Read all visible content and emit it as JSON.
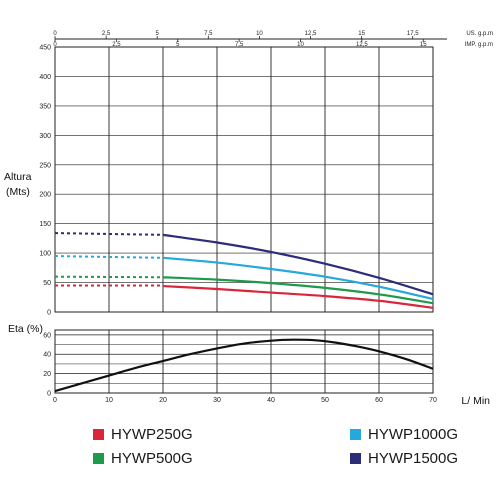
{
  "chart_data": [
    {
      "type": "line",
      "ylabel": [
        "Altura",
        "(Mts)"
      ],
      "ylim": [
        0,
        450
      ],
      "yticks": [
        0,
        50,
        100,
        150,
        200,
        250,
        300,
        350,
        400,
        450
      ],
      "xlim": [
        0,
        70
      ],
      "grid": true,
      "top_axes": [
        {
          "label": "US. g.p.m",
          "ticks": [
            "0",
            "2,5",
            "5",
            "7,5",
            "10",
            "12,5",
            "15",
            "17,5"
          ],
          "values": [
            0,
            2.5,
            5,
            7.5,
            10,
            12.5,
            15,
            17.5
          ],
          "lpm_per_unit": 3.7854
        },
        {
          "label": "IMP. g.p.m",
          "ticks": [
            "0",
            "2,5",
            "5",
            "7,5",
            "10",
            "12,5",
            "15"
          ],
          "values": [
            0,
            2.5,
            5,
            7.5,
            10,
            12.5,
            15
          ],
          "lpm_per_unit": 4.546
        }
      ],
      "series": [
        {
          "name": "HYWP250G",
          "color": "#d9263a",
          "dashed_x": [
            0,
            20
          ],
          "dashed_y": [
            45,
            45
          ],
          "x": [
            20,
            30,
            40,
            50,
            60,
            70
          ],
          "y": [
            44,
            39,
            33,
            27,
            19,
            7
          ]
        },
        {
          "name": "HYWP500G",
          "color": "#1f9a4a",
          "dashed_x": [
            0,
            20
          ],
          "dashed_y": [
            60,
            59
          ],
          "x": [
            20,
            30,
            40,
            50,
            60,
            70
          ],
          "y": [
            59,
            55,
            49,
            41,
            30,
            15
          ]
        },
        {
          "name": "HYWP1000G",
          "color": "#25a9dc",
          "dashed_x": [
            0,
            20
          ],
          "dashed_y": [
            95,
            92
          ],
          "x": [
            20,
            30,
            40,
            50,
            60,
            70
          ],
          "y": [
            92,
            84,
            73,
            60,
            43,
            22
          ]
        },
        {
          "name": "HYWP1500G",
          "color": "#2b2d7a",
          "dashed_x": [
            0,
            20
          ],
          "dashed_y": [
            134,
            131
          ],
          "x": [
            20,
            30,
            40,
            50,
            60,
            70
          ],
          "y": [
            131,
            118,
            102,
            82,
            58,
            30
          ]
        }
      ]
    },
    {
      "type": "line",
      "ylabel": "Eta (%)",
      "xlabel": "L/ Min",
      "ylim": [
        0,
        65
      ],
      "yticks": [
        0,
        20,
        40,
        60
      ],
      "yticks_minor": [
        10,
        30,
        50
      ],
      "xlim": [
        0,
        70
      ],
      "xticks": [
        0,
        10,
        20,
        30,
        40,
        50,
        60,
        70
      ],
      "grid": true,
      "series": [
        {
          "name": "",
          "color": "#111111",
          "x": [
            0,
            5,
            10,
            15,
            20,
            25,
            30,
            35,
            40,
            44,
            48,
            52,
            56,
            60,
            65,
            70
          ],
          "y": [
            2,
            10,
            18,
            26,
            33,
            40,
            46,
            51,
            54,
            55,
            54.5,
            52,
            48,
            43,
            35,
            25
          ]
        }
      ]
    }
  ],
  "legend": [
    {
      "label": "HYWP250G",
      "color": "#d9263a"
    },
    {
      "label": "HYWP1000G",
      "color": "#25a9dc"
    },
    {
      "label": "HYWP500G",
      "color": "#1f9a4a"
    },
    {
      "label": "HYWP1500G",
      "color": "#2b2d7a"
    }
  ]
}
